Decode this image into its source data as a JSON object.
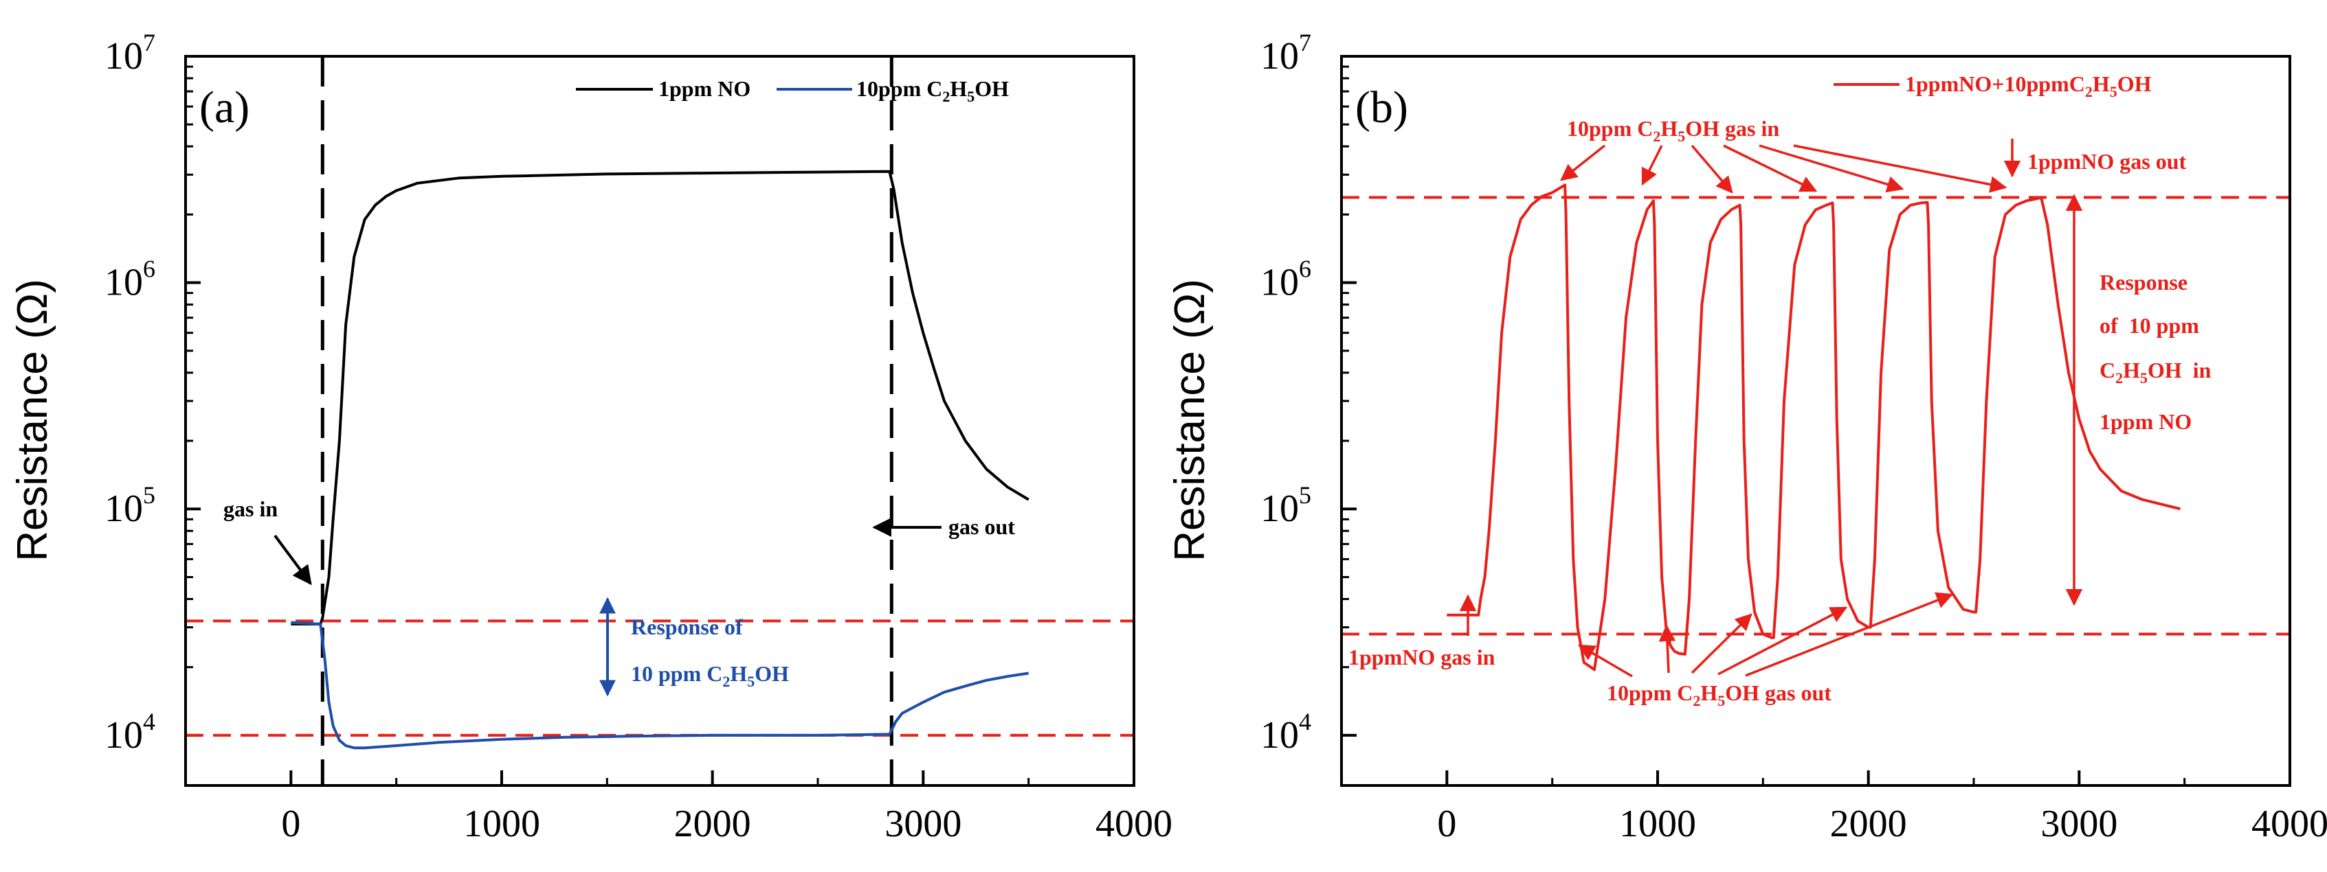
{
  "chart_data": [
    {
      "panel": "(a)",
      "type": "line",
      "title": "",
      "xlabel": "",
      "ylabel": "Resistance (Ω)",
      "xlim": [
        -500,
        4000
      ],
      "ylim": [
        6000,
        10000000
      ],
      "yscale": "log",
      "xticks": [
        0,
        1000,
        2000,
        3000,
        4000
      ],
      "yticks": [
        {
          "base": "10",
          "exp": "4"
        },
        {
          "base": "10",
          "exp": "5"
        },
        {
          "base": "10",
          "exp": "6"
        },
        {
          "base": "10",
          "exp": "7"
        }
      ],
      "legend": {
        "position": "top-right",
        "entries": [
          {
            "label": "1ppm NO",
            "color": "#000000"
          },
          {
            "label_parts": [
              "10ppm C",
              "2",
              "H",
              "5",
              "OH"
            ],
            "color": "#1f4ea8"
          }
        ]
      },
      "series": [
        {
          "name": "1ppm NO",
          "color": "#000000",
          "x": [
            0,
            100,
            140,
            150,
            160,
            180,
            200,
            230,
            260,
            300,
            350,
            400,
            450,
            500,
            600,
            800,
            1000,
            1500,
            2000,
            2500,
            2840,
            2860,
            2900,
            2950,
            3000,
            3050,
            3100,
            3200,
            3300,
            3400,
            3500
          ],
          "y": [
            31000,
            31000,
            31000,
            33000,
            38000,
            50000,
            90000,
            200000,
            650000,
            1300000,
            1900000,
            2200000,
            2400000,
            2550000,
            2750000,
            2900000,
            2950000,
            3020000,
            3050000,
            3080000,
            3100000,
            2600000,
            1500000,
            900000,
            600000,
            420000,
            300000,
            200000,
            150000,
            125000,
            110000
          ]
        },
        {
          "name": "10ppm C2H5OH",
          "color": "#1f4ea8",
          "x": [
            0,
            140,
            160,
            180,
            200,
            230,
            260,
            300,
            350,
            500,
            700,
            1000,
            1300,
            1600,
            2000,
            2500,
            2840,
            2870,
            2900,
            3000,
            3100,
            3200,
            3300,
            3400,
            3500
          ],
          "y": [
            31500,
            31000,
            22000,
            14000,
            11000,
            9500,
            9000,
            8800,
            8800,
            9000,
            9300,
            9600,
            9800,
            9900,
            10000,
            10000,
            10100,
            11500,
            12500,
            14000,
            15500,
            16500,
            17500,
            18200,
            18800
          ]
        }
      ],
      "reference_lines": [
        {
          "axis": "y",
          "value": 32000,
          "color": "#e8201a",
          "style": "dashed"
        },
        {
          "axis": "y",
          "value": 10000,
          "color": "#e8201a",
          "style": "dashed"
        },
        {
          "axis": "x",
          "value": 150,
          "color": "#000000",
          "style": "dashed"
        },
        {
          "axis": "x",
          "value": 2850,
          "color": "#000000",
          "style": "dashed"
        }
      ],
      "annotations": {
        "gas_in": "gas in",
        "gas_out": "gas out",
        "response_line1": "Response of",
        "response_line2_parts": [
          "10 ppm C",
          "2",
          "H",
          "5",
          "OH"
        ],
        "color": "#1f4ea8"
      }
    },
    {
      "panel": "(b)",
      "type": "line",
      "title": "",
      "xlabel": "",
      "ylabel": "Resistance (Ω)",
      "xlim": [
        -500,
        4000
      ],
      "ylim": [
        6000,
        10000000
      ],
      "yscale": "log",
      "xticks": [
        0,
        1000,
        2000,
        3000,
        4000
      ],
      "yticks": [
        {
          "base": "10",
          "exp": "4"
        },
        {
          "base": "10",
          "exp": "5"
        },
        {
          "base": "10",
          "exp": "6"
        },
        {
          "base": "10",
          "exp": "7"
        }
      ],
      "legend": {
        "position": "top-right",
        "entries": [
          {
            "label": "1ppmNO+10ppmC2H5OH",
            "label_parts": [
              "1ppmNO+10ppmC",
              "2",
              "H",
              "5",
              "OH"
            ],
            "color": "#e8201a"
          }
        ]
      },
      "series": [
        {
          "name": "1ppmNO+10ppmC2H5OH",
          "color": "#e8201a",
          "x": [
            0,
            150,
            160,
            180,
            200,
            230,
            260,
            300,
            350,
            400,
            450,
            500,
            560,
            565,
            580,
            600,
            620,
            650,
            700,
            750,
            800,
            850,
            900,
            950,
            980,
            985,
            1000,
            1020,
            1040,
            1060,
            1080,
            1100,
            1130,
            1150,
            1180,
            1210,
            1250,
            1300,
            1350,
            1390,
            1395,
            1410,
            1430,
            1460,
            1500,
            1540,
            1550,
            1570,
            1600,
            1650,
            1700,
            1750,
            1800,
            1830,
            1835,
            1850,
            1870,
            1900,
            1950,
            2000,
            2010,
            2030,
            2060,
            2100,
            2150,
            2200,
            2250,
            2280,
            2285,
            2300,
            2330,
            2380,
            2450,
            2500,
            2510,
            2530,
            2560,
            2600,
            2650,
            2700,
            2750,
            2800,
            2820,
            2850,
            2900,
            2950,
            3000,
            3050,
            3100,
            3200,
            3300,
            3480
          ],
          "y": [
            34000,
            34000,
            40000,
            50000,
            80000,
            200000,
            600000,
            1300000,
            1900000,
            2200000,
            2400000,
            2500000,
            2700000,
            2000000,
            300000,
            60000,
            30000,
            21000,
            19500,
            40000,
            150000,
            700000,
            1500000,
            2100000,
            2300000,
            1800000,
            200000,
            50000,
            30000,
            25000,
            23500,
            23000,
            22800,
            40000,
            200000,
            800000,
            1500000,
            1900000,
            2100000,
            2200000,
            1800000,
            200000,
            60000,
            35000,
            28000,
            27000,
            27000,
            50000,
            300000,
            1200000,
            1800000,
            2100000,
            2200000,
            2250000,
            1800000,
            250000,
            60000,
            40000,
            32000,
            30000,
            30000,
            60000,
            400000,
            1400000,
            2000000,
            2200000,
            2250000,
            2260000,
            1800000,
            300000,
            80000,
            45000,
            36000,
            35000,
            35000,
            60000,
            300000,
            1300000,
            2000000,
            2200000,
            2300000,
            2350000,
            2380000,
            1800000,
            800000,
            400000,
            250000,
            180000,
            150000,
            120000,
            110000,
            100000
          ]
        }
      ],
      "reference_lines": [
        {
          "axis": "y",
          "value": 2380000,
          "color": "#e8201a",
          "style": "dashed"
        },
        {
          "axis": "y",
          "value": 28000,
          "color": "#e8201a",
          "style": "dashed"
        }
      ],
      "annotations": {
        "gas_in_parts": [
          "10ppm C",
          "2",
          "H",
          "5",
          "OH gas in"
        ],
        "nogas_out": "1ppmNO gas out",
        "nogas_in": "1ppmNO gas in",
        "gas_out_parts": [
          "10ppm C",
          "2",
          "H",
          "5",
          "OH gas out"
        ],
        "response_lines": [
          "Response",
          "of  10 ppm"
        ],
        "response_formula_parts": [
          "C",
          "2",
          "H",
          "5",
          "OH  in"
        ],
        "response_last": "1ppm NO",
        "color": "#e8201a"
      }
    }
  ]
}
